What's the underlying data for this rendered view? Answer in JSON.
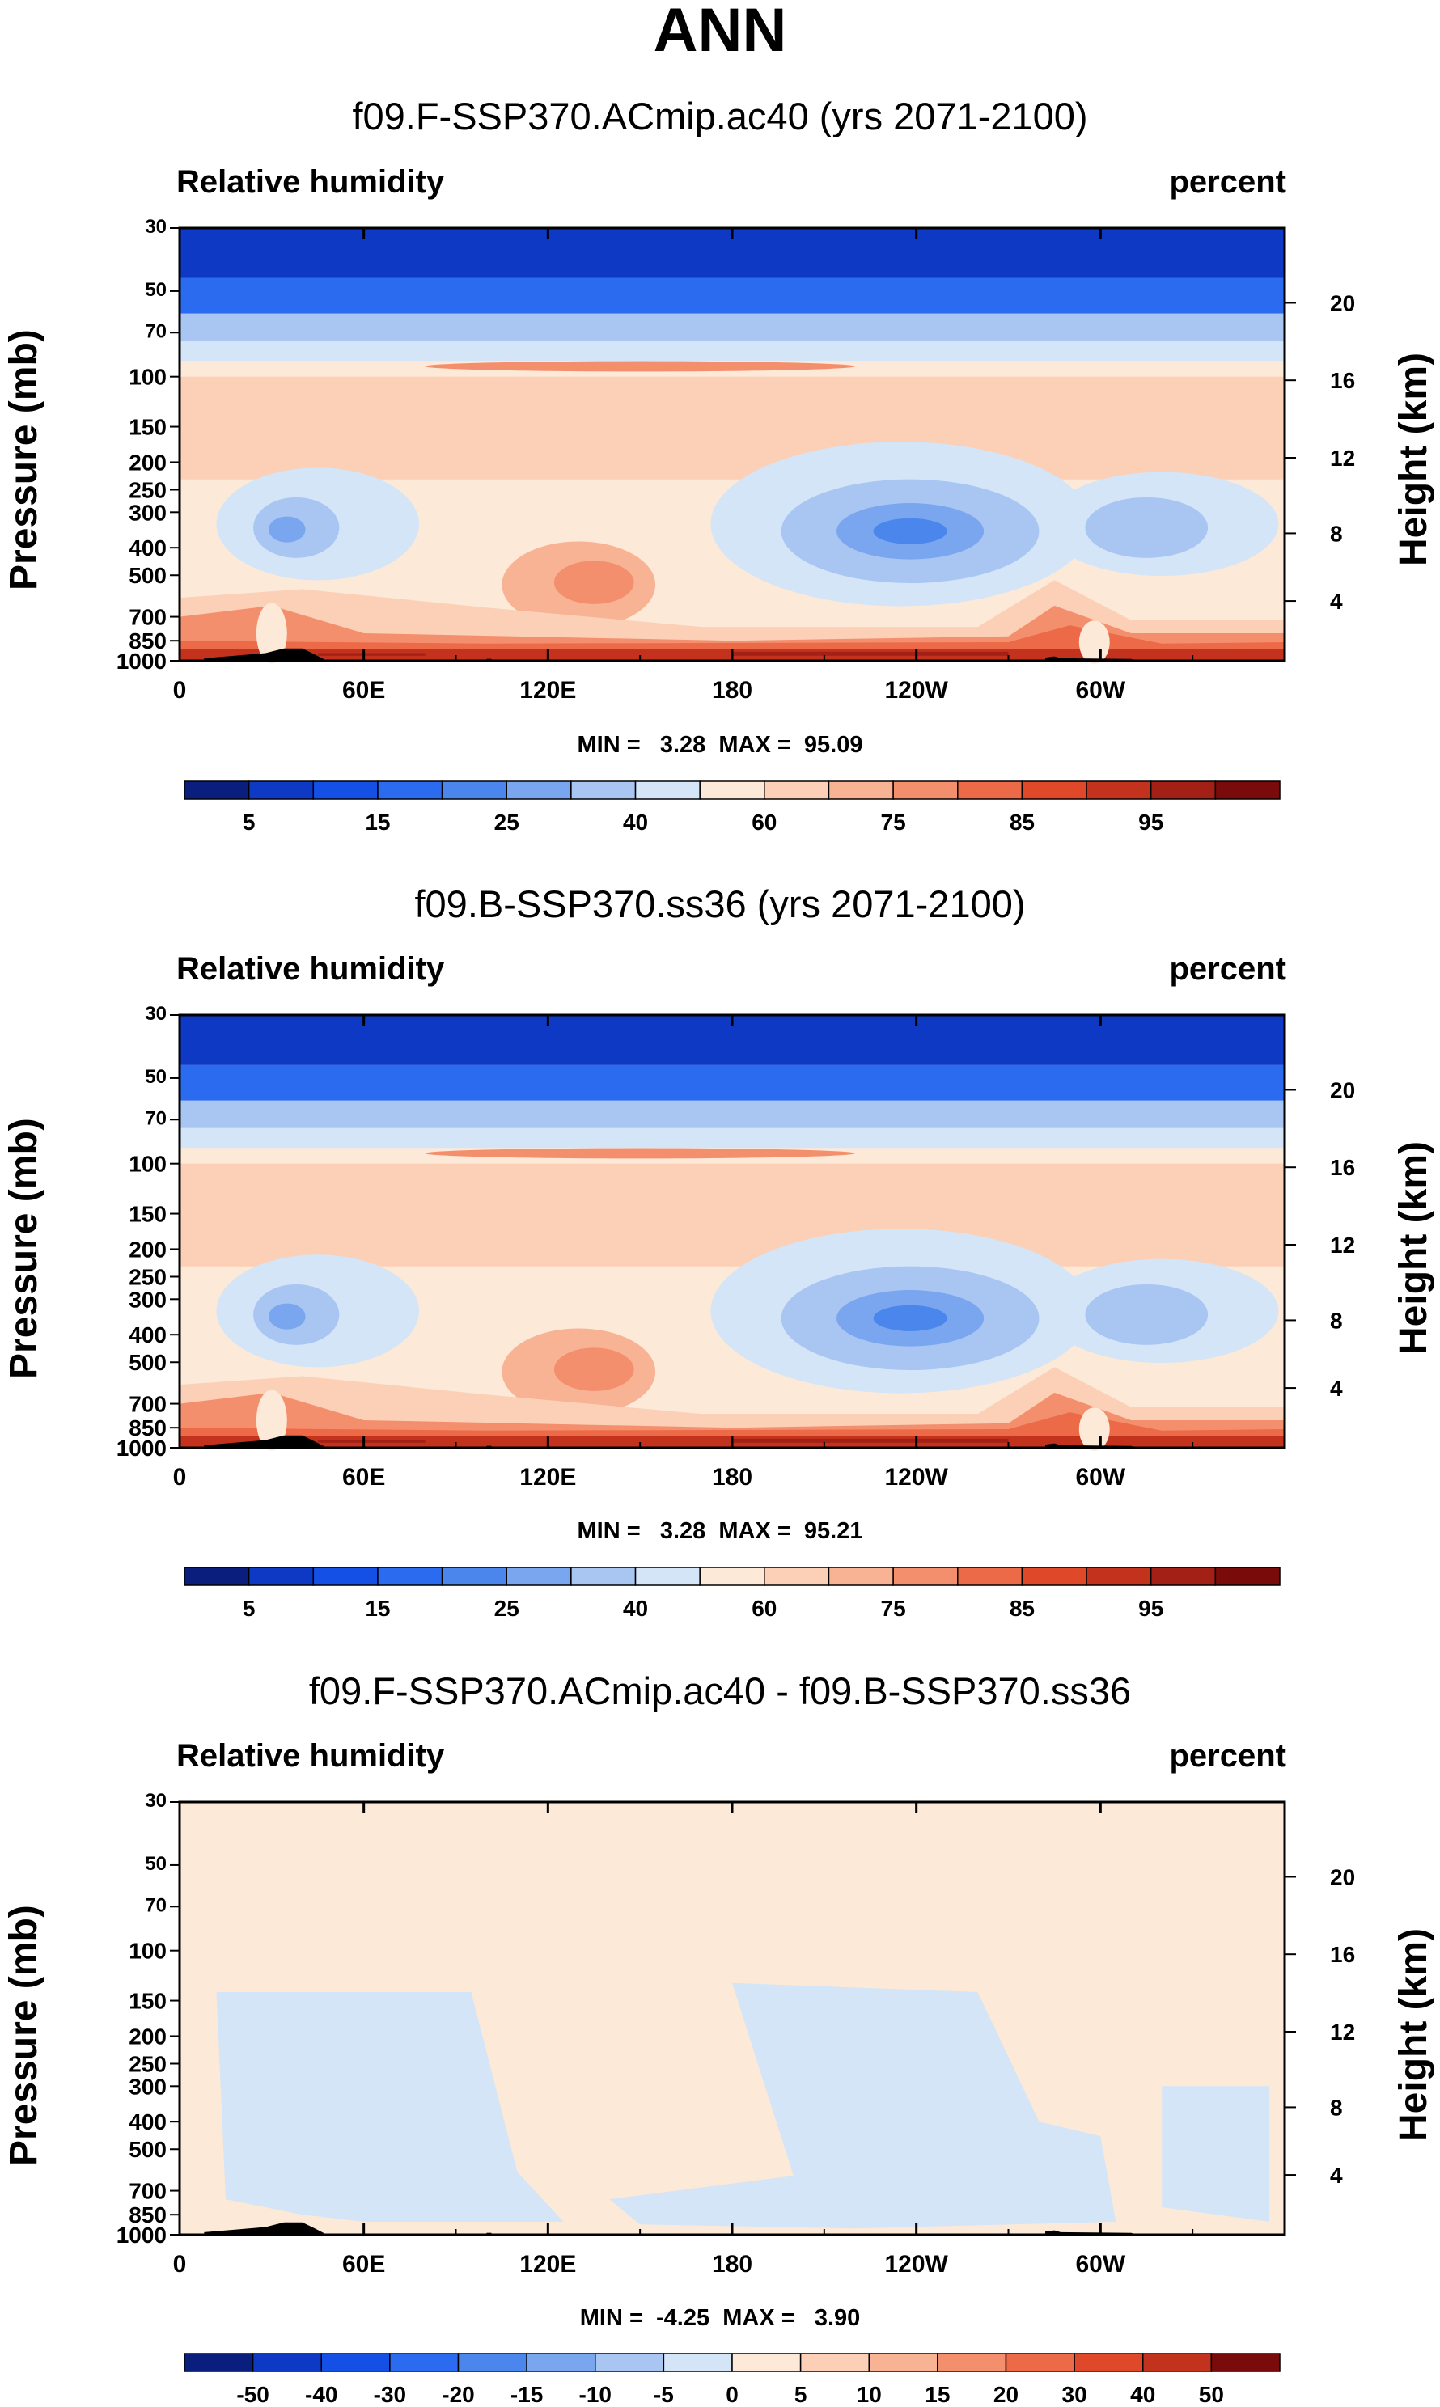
{
  "main_title": "ANN",
  "chart_data": [
    {
      "type": "heatmap",
      "title": "f09.F-SSP370.ACmip.ac40 (yrs 2071-2100)",
      "left_string": "Relative humidity",
      "right_string": "percent",
      "ylabel": "Pressure (mb)",
      "ylabel_right": "Height (km)",
      "xticks": [
        "0",
        "60E",
        "120E",
        "180",
        "120W",
        "60W"
      ],
      "xtick_lons": [
        0,
        60,
        120,
        180,
        240,
        300
      ],
      "xlim": [
        0,
        360
      ],
      "yticks": [
        "30",
        "50",
        "70",
        "100",
        "150",
        "200",
        "250",
        "300",
        "400",
        "500",
        "700",
        "850",
        "1000"
      ],
      "ylim": [
        30,
        1000
      ],
      "height_ticks": [
        "20",
        "16",
        "12",
        "8",
        "4"
      ],
      "minmax_text": "MIN =   3.28  MAX =  95.09",
      "min": 3.28,
      "max": 95.09,
      "colorbar_labels": [
        "5",
        "15",
        "25",
        "40",
        "60",
        "75",
        "85",
        "95"
      ],
      "colorbar_colors": [
        "#0a1f7d",
        "#0d39c4",
        "#1450e6",
        "#2a6bf0",
        "#4a86ec",
        "#7aa6ef",
        "#a9c6f3",
        "#d3e5f7",
        "#fde9d7",
        "#fbd0b6",
        "#f8b294",
        "#f48f6e",
        "#ec6a48",
        "#e0482a",
        "#c3321c",
        "#a22015",
        "#7a0b0b"
      ]
    },
    {
      "type": "heatmap",
      "title": "f09.B-SSP370.ss36 (yrs 2071-2100)",
      "left_string": "Relative humidity",
      "right_string": "percent",
      "ylabel": "Pressure (mb)",
      "ylabel_right": "Height (km)",
      "xticks": [
        "0",
        "60E",
        "120E",
        "180",
        "120W",
        "60W"
      ],
      "xtick_lons": [
        0,
        60,
        120,
        180,
        240,
        300
      ],
      "xlim": [
        0,
        360
      ],
      "yticks": [
        "30",
        "50",
        "70",
        "100",
        "150",
        "200",
        "250",
        "300",
        "400",
        "500",
        "700",
        "850",
        "1000"
      ],
      "ylim": [
        30,
        1000
      ],
      "height_ticks": [
        "20",
        "16",
        "12",
        "8",
        "4"
      ],
      "minmax_text": "MIN =   3.28  MAX =  95.21",
      "min": 3.28,
      "max": 95.21,
      "colorbar_labels": [
        "5",
        "15",
        "25",
        "40",
        "60",
        "75",
        "85",
        "95"
      ],
      "colorbar_colors": [
        "#0a1f7d",
        "#0d39c4",
        "#1450e6",
        "#2a6bf0",
        "#4a86ec",
        "#7aa6ef",
        "#a9c6f3",
        "#d3e5f7",
        "#fde9d7",
        "#fbd0b6",
        "#f8b294",
        "#f48f6e",
        "#ec6a48",
        "#e0482a",
        "#c3321c",
        "#a22015",
        "#7a0b0b"
      ]
    },
    {
      "type": "heatmap",
      "title": "f09.F-SSP370.ACmip.ac40 - f09.B-SSP370.ss36",
      "left_string": "Relative humidity",
      "right_string": "percent",
      "ylabel": "Pressure (mb)",
      "ylabel_right": "Height (km)",
      "xticks": [
        "0",
        "60E",
        "120E",
        "180",
        "120W",
        "60W"
      ],
      "xtick_lons": [
        0,
        60,
        120,
        180,
        240,
        300
      ],
      "xlim": [
        0,
        360
      ],
      "yticks": [
        "30",
        "50",
        "70",
        "100",
        "150",
        "200",
        "250",
        "300",
        "400",
        "500",
        "700",
        "850",
        "1000"
      ],
      "ylim": [
        30,
        1000
      ],
      "height_ticks": [
        "20",
        "16",
        "12",
        "8",
        "4"
      ],
      "minmax_text": "MIN =  -4.25  MAX =   3.90",
      "min": -4.25,
      "max": 3.9,
      "colorbar_labels": [
        "-50",
        "-40",
        "-30",
        "-20",
        "-15",
        "-10",
        "-5",
        "0",
        "5",
        "10",
        "15",
        "20",
        "30",
        "40",
        "50"
      ],
      "colorbar_colors": [
        "#0a1f7d",
        "#0d39c4",
        "#1450e6",
        "#2a6bf0",
        "#4a86ec",
        "#7aa6ef",
        "#a9c6f3",
        "#d3e5f7",
        "#fde9d7",
        "#fbd0b6",
        "#f8b294",
        "#f48f6e",
        "#ec6a48",
        "#e0482a",
        "#c3321c",
        "#7a0b0b"
      ]
    }
  ],
  "land_color": "#000000"
}
